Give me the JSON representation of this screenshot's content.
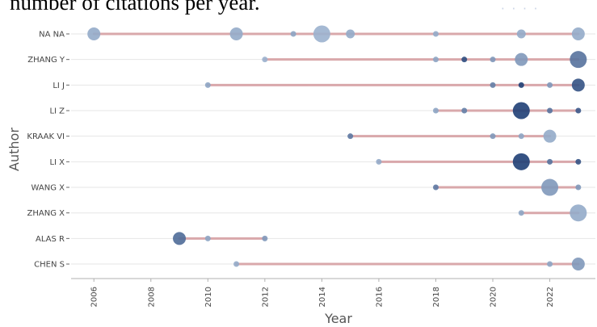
{
  "header": {
    "caption": "number of citations per year.",
    "badge": "· · · ·"
  },
  "chart_data": {
    "type": "scatter",
    "xlabel": "Year",
    "ylabel": "Author",
    "xlim": [
      2005.2,
      2023.6
    ],
    "xticks": [
      2006,
      2008,
      2010,
      2012,
      2014,
      2016,
      2018,
      2020,
      2022
    ],
    "grid": true,
    "colors": {
      "line": "#d9a8ab",
      "point_light": "#a9bed8",
      "point_dark": "#1f3f75",
      "grid": "#e6e6e6",
      "axis": "#b0b0b0"
    },
    "authors": [
      {
        "name": "NA NA",
        "start": 2006,
        "end": 2023,
        "points": [
          {
            "x": 2006,
            "s": 3,
            "d": 0.15
          },
          {
            "x": 2011,
            "s": 3,
            "d": 0.15
          },
          {
            "x": 2013,
            "s": 1,
            "d": 0.2
          },
          {
            "x": 2014,
            "s": 4,
            "d": 0.1
          },
          {
            "x": 2015,
            "s": 2,
            "d": 0.15
          },
          {
            "x": 2018,
            "s": 1,
            "d": 0.15
          },
          {
            "x": 2021,
            "s": 2,
            "d": 0.15
          },
          {
            "x": 2023,
            "s": 3,
            "d": 0.15
          }
        ]
      },
      {
        "name": "ZHANG Y",
        "start": 2012,
        "end": 2023,
        "points": [
          {
            "x": 2012,
            "s": 1,
            "d": 0.1
          },
          {
            "x": 2018,
            "s": 1,
            "d": 0.2
          },
          {
            "x": 2019,
            "s": 1,
            "d": 0.9
          },
          {
            "x": 2020,
            "s": 1,
            "d": 0.3
          },
          {
            "x": 2021,
            "s": 3,
            "d": 0.3
          },
          {
            "x": 2023,
            "s": 4,
            "d": 0.6
          }
        ]
      },
      {
        "name": "LI J",
        "start": 2010,
        "end": 2023,
        "points": [
          {
            "x": 2010,
            "s": 1,
            "d": 0.2
          },
          {
            "x": 2020,
            "s": 1,
            "d": 0.5
          },
          {
            "x": 2021,
            "s": 1,
            "d": 1.0
          },
          {
            "x": 2022,
            "s": 1,
            "d": 0.3
          },
          {
            "x": 2023,
            "s": 3,
            "d": 0.85
          }
        ]
      },
      {
        "name": "LI Z",
        "start": 2018,
        "end": 2023,
        "points": [
          {
            "x": 2018,
            "s": 1,
            "d": 0.2
          },
          {
            "x": 2019,
            "s": 1,
            "d": 0.5
          },
          {
            "x": 2021,
            "s": 4,
            "d": 1.0
          },
          {
            "x": 2022,
            "s": 1,
            "d": 0.6
          },
          {
            "x": 2023,
            "s": 1,
            "d": 0.8
          }
        ]
      },
      {
        "name": "KRAAK VI",
        "start": 2015,
        "end": 2022,
        "points": [
          {
            "x": 2015,
            "s": 1,
            "d": 0.55
          },
          {
            "x": 2020,
            "s": 1,
            "d": 0.3
          },
          {
            "x": 2021,
            "s": 1,
            "d": 0.2
          },
          {
            "x": 2022,
            "s": 3,
            "d": 0.15
          }
        ]
      },
      {
        "name": "LI X",
        "start": 2016,
        "end": 2023,
        "points": [
          {
            "x": 2016,
            "s": 1,
            "d": 0.15
          },
          {
            "x": 2021,
            "s": 4,
            "d": 1.0
          },
          {
            "x": 2022,
            "s": 1,
            "d": 0.6
          },
          {
            "x": 2023,
            "s": 1,
            "d": 0.85
          }
        ]
      },
      {
        "name": "WANG X",
        "start": 2018,
        "end": 2023,
        "points": [
          {
            "x": 2018,
            "s": 1,
            "d": 0.55
          },
          {
            "x": 2022,
            "s": 4,
            "d": 0.3
          },
          {
            "x": 2023,
            "s": 1,
            "d": 0.3
          }
        ]
      },
      {
        "name": "ZHANG X",
        "start": 2021,
        "end": 2023,
        "points": [
          {
            "x": 2021,
            "s": 1,
            "d": 0.2
          },
          {
            "x": 2023,
            "s": 4,
            "d": 0.15
          }
        ]
      },
      {
        "name": "ALAS R",
        "start": 2009,
        "end": 2012,
        "points": [
          {
            "x": 2009,
            "s": 3,
            "d": 0.65
          },
          {
            "x": 2010,
            "s": 1,
            "d": 0.2
          },
          {
            "x": 2012,
            "s": 1,
            "d": 0.3
          }
        ]
      },
      {
        "name": "CHEN S",
        "start": 2011,
        "end": 2023,
        "points": [
          {
            "x": 2011,
            "s": 1,
            "d": 0.15
          },
          {
            "x": 2022,
            "s": 1,
            "d": 0.2
          },
          {
            "x": 2023,
            "s": 3,
            "d": 0.3
          }
        ]
      }
    ]
  }
}
